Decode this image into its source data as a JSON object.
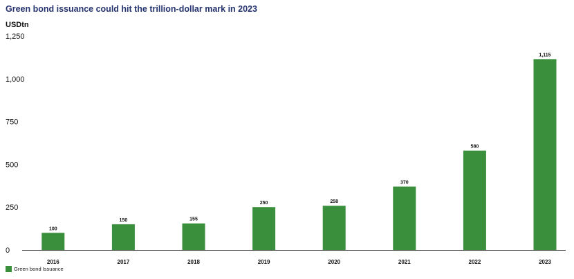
{
  "chart_data": {
    "type": "bar",
    "title": "Green bond issuance could hit the trillion-dollar mark in 2023",
    "ylabel": "USDtn",
    "xlabel": "",
    "categories": [
      "2016",
      "2017",
      "2018",
      "2019",
      "2020",
      "2021",
      "2022",
      "2023"
    ],
    "series": [
      {
        "name": "Green bond Issuance",
        "values": [
          100,
          150,
          155,
          250,
          258,
          370,
          580,
          1115
        ],
        "labels": [
          "100",
          "150",
          "155",
          "250",
          "258",
          "370",
          "580",
          "1,115"
        ],
        "color": "#3a8f3c"
      }
    ],
    "ylim": [
      0,
      1250
    ],
    "yticks": [
      0,
      250,
      500,
      750,
      1000,
      1250
    ],
    "ytick_labels": [
      "0",
      "250",
      "500",
      "750",
      "1,000",
      "1,250"
    ],
    "grid": false,
    "legend_position": "bottom-left"
  },
  "colors": {
    "title": "#25336e",
    "bar": "#3a8f3c",
    "axis": "#333333"
  }
}
